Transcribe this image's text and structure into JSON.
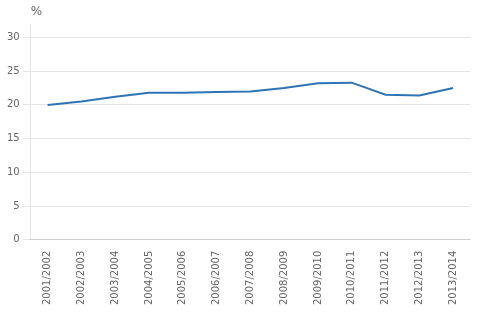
{
  "chart_data": {
    "type": "line",
    "ylabel": "%",
    "categories": [
      "2001/2002",
      "2002/2003",
      "2003/2004",
      "2004/2005",
      "2005/2006",
      "2006/2007",
      "2007/2008",
      "2008/2009",
      "2009/2010",
      "2010/2011",
      "2011/2012",
      "2012/2013",
      "2013/2014"
    ],
    "values": [
      20.0,
      20.5,
      21.2,
      21.8,
      21.8,
      21.9,
      22.0,
      22.5,
      23.2,
      23.3,
      21.5,
      21.4,
      22.5
    ],
    "color": "#2E74B5",
    "ylim": [
      0,
      32
    ],
    "yticks": [
      0,
      5,
      10,
      15,
      20,
      25,
      30
    ],
    "grid": true
  }
}
